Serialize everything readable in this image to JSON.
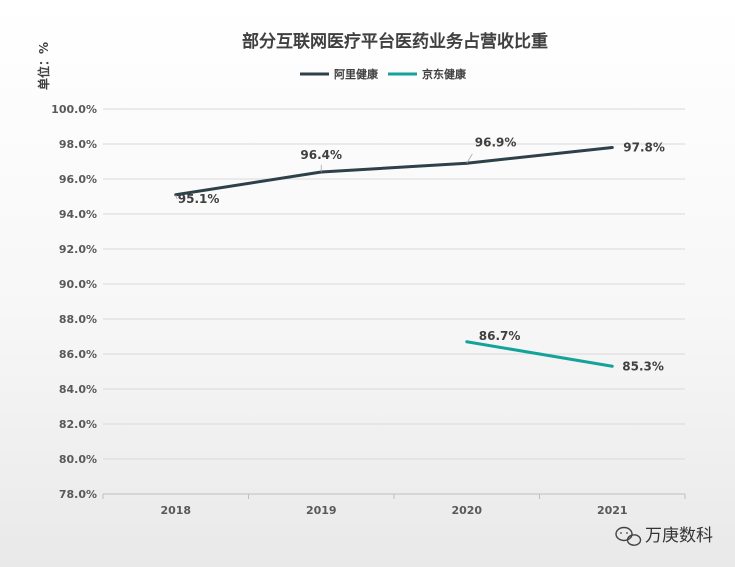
{
  "chart_data": {
    "type": "line",
    "title": "部分互联网医疗平台医药业务占营收比重",
    "unit_label": "单位：%",
    "xlabel": "",
    "ylabel": "",
    "categories": [
      "2018",
      "2019",
      "2020",
      "2021"
    ],
    "ylim": [
      78.0,
      100.0
    ],
    "ytick_step": 2.0,
    "yticks": [
      "78.0%",
      "80.0%",
      "82.0%",
      "84.0%",
      "86.0%",
      "88.0%",
      "90.0%",
      "92.0%",
      "94.0%",
      "96.0%",
      "98.0%",
      "100.0%"
    ],
    "grid": true,
    "legend_position": "top",
    "series": [
      {
        "name": "阿里健康",
        "color": "#2e4049",
        "values": [
          95.1,
          96.4,
          96.9,
          97.8
        ],
        "labels": [
          "95.1%",
          "96.4%",
          "96.9%",
          "97.8%"
        ]
      },
      {
        "name": "京东健康",
        "color": "#13a39a",
        "values": [
          null,
          null,
          86.7,
          85.3
        ],
        "labels": [
          null,
          null,
          "86.7%",
          "85.3%"
        ]
      }
    ]
  },
  "watermark": {
    "text": "万庚数科",
    "icon": "wechat-icon"
  }
}
